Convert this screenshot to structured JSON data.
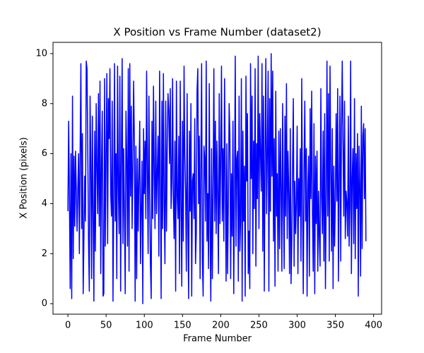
{
  "chart_data": {
    "type": "line",
    "title": "X Position vs Frame Number (dataset2)",
    "x_label": "Frame Number",
    "y_label": "X Position (pixels)",
    "x": [
      0,
      1,
      2,
      3,
      4,
      5,
      6,
      7,
      8,
      9,
      10,
      11,
      12,
      13,
      14,
      15,
      16,
      17,
      18,
      19,
      20,
      21,
      22,
      23,
      24,
      25,
      26,
      27,
      28,
      29,
      30,
      31,
      32,
      33,
      34,
      35,
      36,
      37,
      38,
      39,
      40,
      41,
      42,
      43,
      44,
      45,
      46,
      47,
      48,
      49,
      50,
      51,
      52,
      53,
      54,
      55,
      56,
      57,
      58,
      59,
      60,
      61,
      62,
      63,
      64,
      65,
      66,
      67,
      68,
      69,
      70,
      71,
      72,
      73,
      74,
      75,
      76,
      77,
      78,
      79,
      80,
      81,
      82,
      83,
      84,
      85,
      86,
      87,
      88,
      89,
      90,
      91,
      92,
      93,
      94,
      95,
      96,
      97,
      98,
      99,
      100,
      101,
      102,
      103,
      104,
      105,
      106,
      107,
      108,
      109,
      110,
      111,
      112,
      113,
      114,
      115,
      116,
      117,
      118,
      119,
      120,
      121,
      122,
      123,
      124,
      125,
      126,
      127,
      128,
      129,
      130,
      131,
      132,
      133,
      134,
      135,
      136,
      137,
      138,
      139,
      140,
      141,
      142,
      143,
      144,
      145,
      146,
      147,
      148,
      149,
      150,
      151,
      152,
      153,
      154,
      155,
      156,
      157,
      158,
      159,
      160,
      161,
      162,
      163,
      164,
      165,
      166,
      167,
      168,
      169,
      170,
      171,
      172,
      173,
      174,
      175,
      176,
      177,
      178,
      179,
      180,
      181,
      182,
      183,
      184,
      185,
      186,
      187,
      188,
      189,
      190,
      191,
      192,
      193,
      194,
      195,
      196,
      197,
      198,
      199,
      200,
      201,
      202,
      203,
      204,
      205,
      206,
      207,
      208,
      209,
      210,
      211,
      212,
      213,
      214,
      215,
      216,
      217,
      218,
      219,
      220,
      221,
      222,
      223,
      224,
      225,
      226,
      227,
      228,
      229,
      230,
      231,
      232,
      233,
      234,
      235,
      236,
      237,
      238,
      239,
      240,
      241,
      242,
      243,
      244,
      245,
      246,
      247,
      248,
      249,
      250,
      251,
      252,
      253,
      254,
      255,
      256,
      257,
      258,
      259,
      260,
      261,
      262,
      263,
      264,
      265,
      266,
      267,
      268,
      269,
      270,
      271,
      272,
      273,
      274,
      275,
      276,
      277,
      278,
      279,
      280,
      281,
      282,
      283,
      284,
      285,
      286,
      287,
      288,
      289,
      290,
      291,
      292,
      293,
      294,
      295,
      296,
      297,
      298,
      299,
      300,
      301,
      302,
      303,
      304,
      305,
      306,
      307,
      308,
      309,
      310,
      311,
      312,
      313,
      314,
      315,
      316,
      317,
      318,
      319,
      320,
      321,
      322,
      323,
      324,
      325,
      326,
      327,
      328,
      329,
      330,
      331,
      332,
      333,
      334,
      335,
      336,
      337,
      338,
      339,
      340,
      341,
      342,
      343,
      344,
      345,
      346,
      347,
      348,
      349,
      350,
      351,
      352,
      353,
      354,
      355,
      356,
      357,
      358,
      359,
      360,
      361,
      362,
      363,
      364,
      365,
      366,
      367,
      368,
      369,
      370,
      371,
      372,
      373,
      374,
      375,
      376,
      377,
      378,
      379,
      380,
      381,
      382,
      383,
      384,
      385,
      386,
      387,
      388,
      389,
      390
    ],
    "series": [
      {
        "color": "#0000ff",
        "values": [
          3.7,
          7.3,
          4.2,
          0.6,
          6.0,
          0.2,
          8.3,
          1.8,
          5.9,
          3.1,
          6.1,
          4.5,
          2.9,
          4.6,
          6.0,
          2.0,
          6.1,
          9.6,
          3.0,
          6.8,
          0.4,
          2.7,
          5.1,
          3.3,
          9.7,
          9.4,
          6.2,
          2.5,
          0.5,
          8.3,
          5.7,
          1.0,
          7.5,
          3.6,
          0.1,
          6.9,
          2.1,
          8.0,
          5.5,
          3.6,
          8.4,
          3.1,
          8.9,
          1.2,
          5.6,
          7.7,
          0.3,
          0.4,
          9.0,
          2.3,
          5.9,
          9.2,
          2.4,
          8.2,
          6.6,
          9.4,
          4.4,
          3.5,
          8.1,
          0.1,
          4.2,
          9.6,
          3.3,
          6.0,
          1.0,
          9.5,
          4.7,
          2.8,
          9.1,
          0.5,
          5.9,
          9.8,
          2.4,
          6.2,
          3.7,
          0.4,
          7.7,
          5.8,
          2.3,
          9.4,
          1.3,
          9.6,
          4.3,
          7.9,
          3.0,
          5.6,
          8.9,
          6.5,
          0.1,
          6.3,
          1.0,
          5.8,
          2.9,
          5.1,
          7.3,
          1.6,
          3.8,
          5.7,
          0.0,
          7.0,
          4.4,
          6.5,
          3.4,
          9.3,
          5.4,
          2.0,
          8.3,
          4.4,
          1.6,
          0.2,
          7.3,
          3.4,
          8.7,
          5.2,
          3.0,
          8.1,
          3.6,
          5.3,
          6.7,
          1.9,
          9.3,
          5.0,
          0.2,
          8.1,
          3.0,
          9.2,
          4.0,
          1.6,
          8.1,
          2.9,
          6.4,
          8.4,
          7.7,
          5.6,
          8.6,
          3.8,
          4.9,
          9.0,
          4.1,
          2.6,
          6.5,
          0.5,
          8.9,
          4.3,
          3.4,
          6.7,
          1.2,
          8.9,
          4.0,
          0.7,
          7.3,
          2.5,
          9.5,
          5.9,
          4.5,
          1.3,
          8.4,
          3.1,
          0.2,
          6.9,
          3.7,
          8.0,
          0.3,
          4.9,
          5.2,
          3.4,
          7.4,
          1.6,
          2.8,
          8.5,
          9.4,
          4.0,
          6.7,
          1.0,
          5.5,
          9.6,
          1.7,
          0.3,
          6.3,
          5.8,
          3.3,
          9.7,
          2.5,
          4.4,
          1.4,
          8.8,
          3.1,
          0.1,
          6.2,
          1.0,
          4.6,
          9.4,
          3.3,
          7.3,
          2.8,
          6.5,
          4.2,
          1.2,
          8.4,
          3.2,
          5.8,
          9.5,
          3.3,
          6.2,
          2.5,
          9.0,
          4.8,
          0.9,
          6.4,
          1.2,
          4.2,
          8.0,
          6.7,
          1.0,
          5.2,
          2.7,
          7.3,
          0.4,
          4.3,
          9.9,
          2.3,
          5.8,
          6.1,
          0.9,
          8.3,
          2.1,
          3.3,
          9.0,
          0.1,
          6.9,
          3.3,
          5.5,
          0.3,
          9.1,
          4.9,
          7.6,
          1.2,
          2.9,
          0.6,
          9.6,
          5.0,
          8.3,
          2.0,
          6.5,
          3.8,
          9.4,
          1.5,
          6.4,
          4.2,
          9.9,
          3.0,
          7.6,
          6.0,
          4.5,
          9.6,
          2.1,
          8.3,
          0.5,
          5.8,
          9.8,
          3.6,
          6.0,
          9.3,
          0.5,
          8.2,
          3.7,
          10.0,
          5.1,
          9.3,
          2.5,
          6.6,
          0.7,
          8.5,
          3.5,
          5.2,
          1.3,
          6.9,
          2.2,
          7.0,
          4.6,
          1.3,
          8.0,
          4.1,
          1.4,
          7.5,
          3.5,
          8.8,
          2.6,
          6.1,
          4.5,
          1.2,
          7.0,
          0.8,
          2.5,
          5.5,
          8.2,
          1.5,
          4.9,
          2.8,
          4.0,
          7.1,
          1.2,
          5.0,
          3.5,
          6.2,
          1.7,
          9.0,
          4.0,
          0.4,
          5.4,
          8.1,
          3.3,
          6.2,
          0.3,
          4.6,
          5.9,
          1.1,
          7.8,
          4.2,
          8.5,
          3.7,
          1.3,
          7.2,
          0.4,
          5.9,
          3.2,
          6.1,
          1.3,
          4.5,
          2.7,
          1.5,
          8.6,
          4.3,
          2.8,
          6.9,
          1.7,
          7.6,
          0.6,
          4.0,
          9.7,
          3.5,
          8.4,
          1.7,
          9.5,
          5.5,
          2.1,
          7.0,
          0.6,
          5.5,
          2.3,
          4.2,
          7.6,
          4.1,
          8.6,
          0.9,
          4.9,
          8.3,
          1.7,
          7.0,
          9.7,
          6.4,
          3.5,
          8.1,
          2.6,
          4.5,
          4.0,
          2.7,
          7.5,
          2.3,
          3.9,
          9.7,
          1.2,
          5.0,
          6.2,
          2.4,
          8.2,
          1.8,
          6.0,
          3.8,
          6.8,
          0.3,
          6.3,
          4.8,
          1.1,
          7.9,
          2.2,
          6.7,
          7.2,
          4.2,
          7.0,
          2.5
        ]
      }
    ],
    "xlim": [
      -19.5,
      410.5
    ],
    "ylim": [
      -0.42,
      10.45
    ],
    "xticks": [
      0,
      50,
      100,
      150,
      200,
      250,
      300,
      350,
      400
    ],
    "yticks": [
      0,
      2,
      4,
      6,
      8,
      10
    ],
    "grid": false
  }
}
